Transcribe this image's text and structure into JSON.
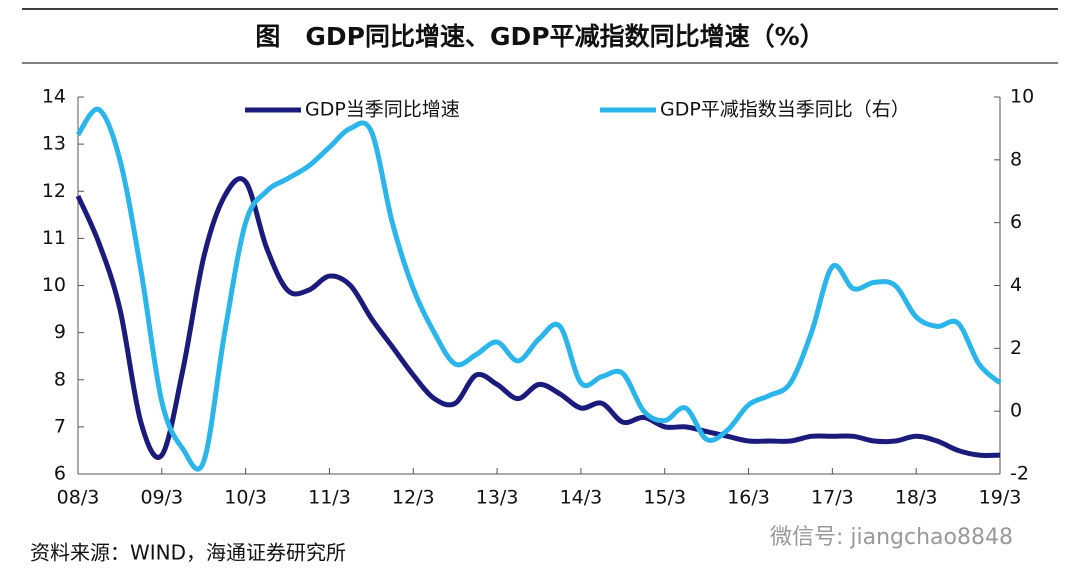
{
  "chart_data": {
    "type": "line",
    "title": "图　GDP同比增速、GDP平减指数同比增速（%）",
    "source": "资料来源：WIND，海通证券研究所",
    "watermark": "微信号: jiangchao8848",
    "categories": [
      "08/3",
      null,
      null,
      null,
      "09/3",
      null,
      null,
      null,
      "10/3",
      null,
      null,
      null,
      "11/3",
      null,
      null,
      null,
      "12/3",
      null,
      null,
      null,
      "13/3",
      null,
      null,
      null,
      "14/3",
      null,
      null,
      null,
      "15/3",
      null,
      null,
      null,
      "16/3",
      null,
      null,
      null,
      "17/3",
      null,
      null,
      null,
      "18/3",
      null,
      null,
      null,
      "19/3"
    ],
    "series": [
      {
        "name": "GDP当季同比增速",
        "color": "#1b1b7c",
        "axis": "y",
        "values": [
          11.9,
          10.9,
          9.5,
          7.1,
          6.4,
          8.2,
          10.6,
          11.9,
          12.2,
          10.8,
          9.9,
          9.9,
          10.2,
          10.0,
          9.3,
          8.7,
          8.1,
          7.6,
          7.5,
          8.1,
          7.9,
          7.6,
          7.9,
          7.7,
          7.4,
          7.5,
          7.1,
          7.2,
          7.0,
          7.0,
          6.9,
          6.8,
          6.7,
          6.7,
          6.7,
          6.8,
          6.8,
          6.8,
          6.7,
          6.7,
          6.8,
          6.7,
          6.5,
          6.4,
          6.4
        ]
      },
      {
        "name": "GDP平减指数当季同比（右）",
        "color": "#2bb5ea",
        "axis": "y2",
        "values": [
          8.8,
          9.6,
          8.0,
          4.5,
          0.3,
          -1.2,
          -1.6,
          2.5,
          6.0,
          7.0,
          7.4,
          7.8,
          8.4,
          9.0,
          8.9,
          6.0,
          3.9,
          2.5,
          1.5,
          1.8,
          2.2,
          1.6,
          2.3,
          2.7,
          0.9,
          1.1,
          1.2,
          0.0,
          -0.3,
          0.1,
          -0.9,
          -0.6,
          0.2,
          0.5,
          0.9,
          2.5,
          4.6,
          3.9,
          4.1,
          4.0,
          3.0,
          2.7,
          2.8,
          1.5,
          0.9
        ]
      }
    ],
    "ylim": [
      6,
      14
    ],
    "yticks": [
      6,
      7,
      8,
      9,
      10,
      11,
      12,
      13,
      14
    ],
    "y2lim": [
      -2,
      10
    ],
    "y2ticks": [
      -2,
      0,
      2,
      4,
      6,
      8,
      10
    ],
    "grid": false
  }
}
